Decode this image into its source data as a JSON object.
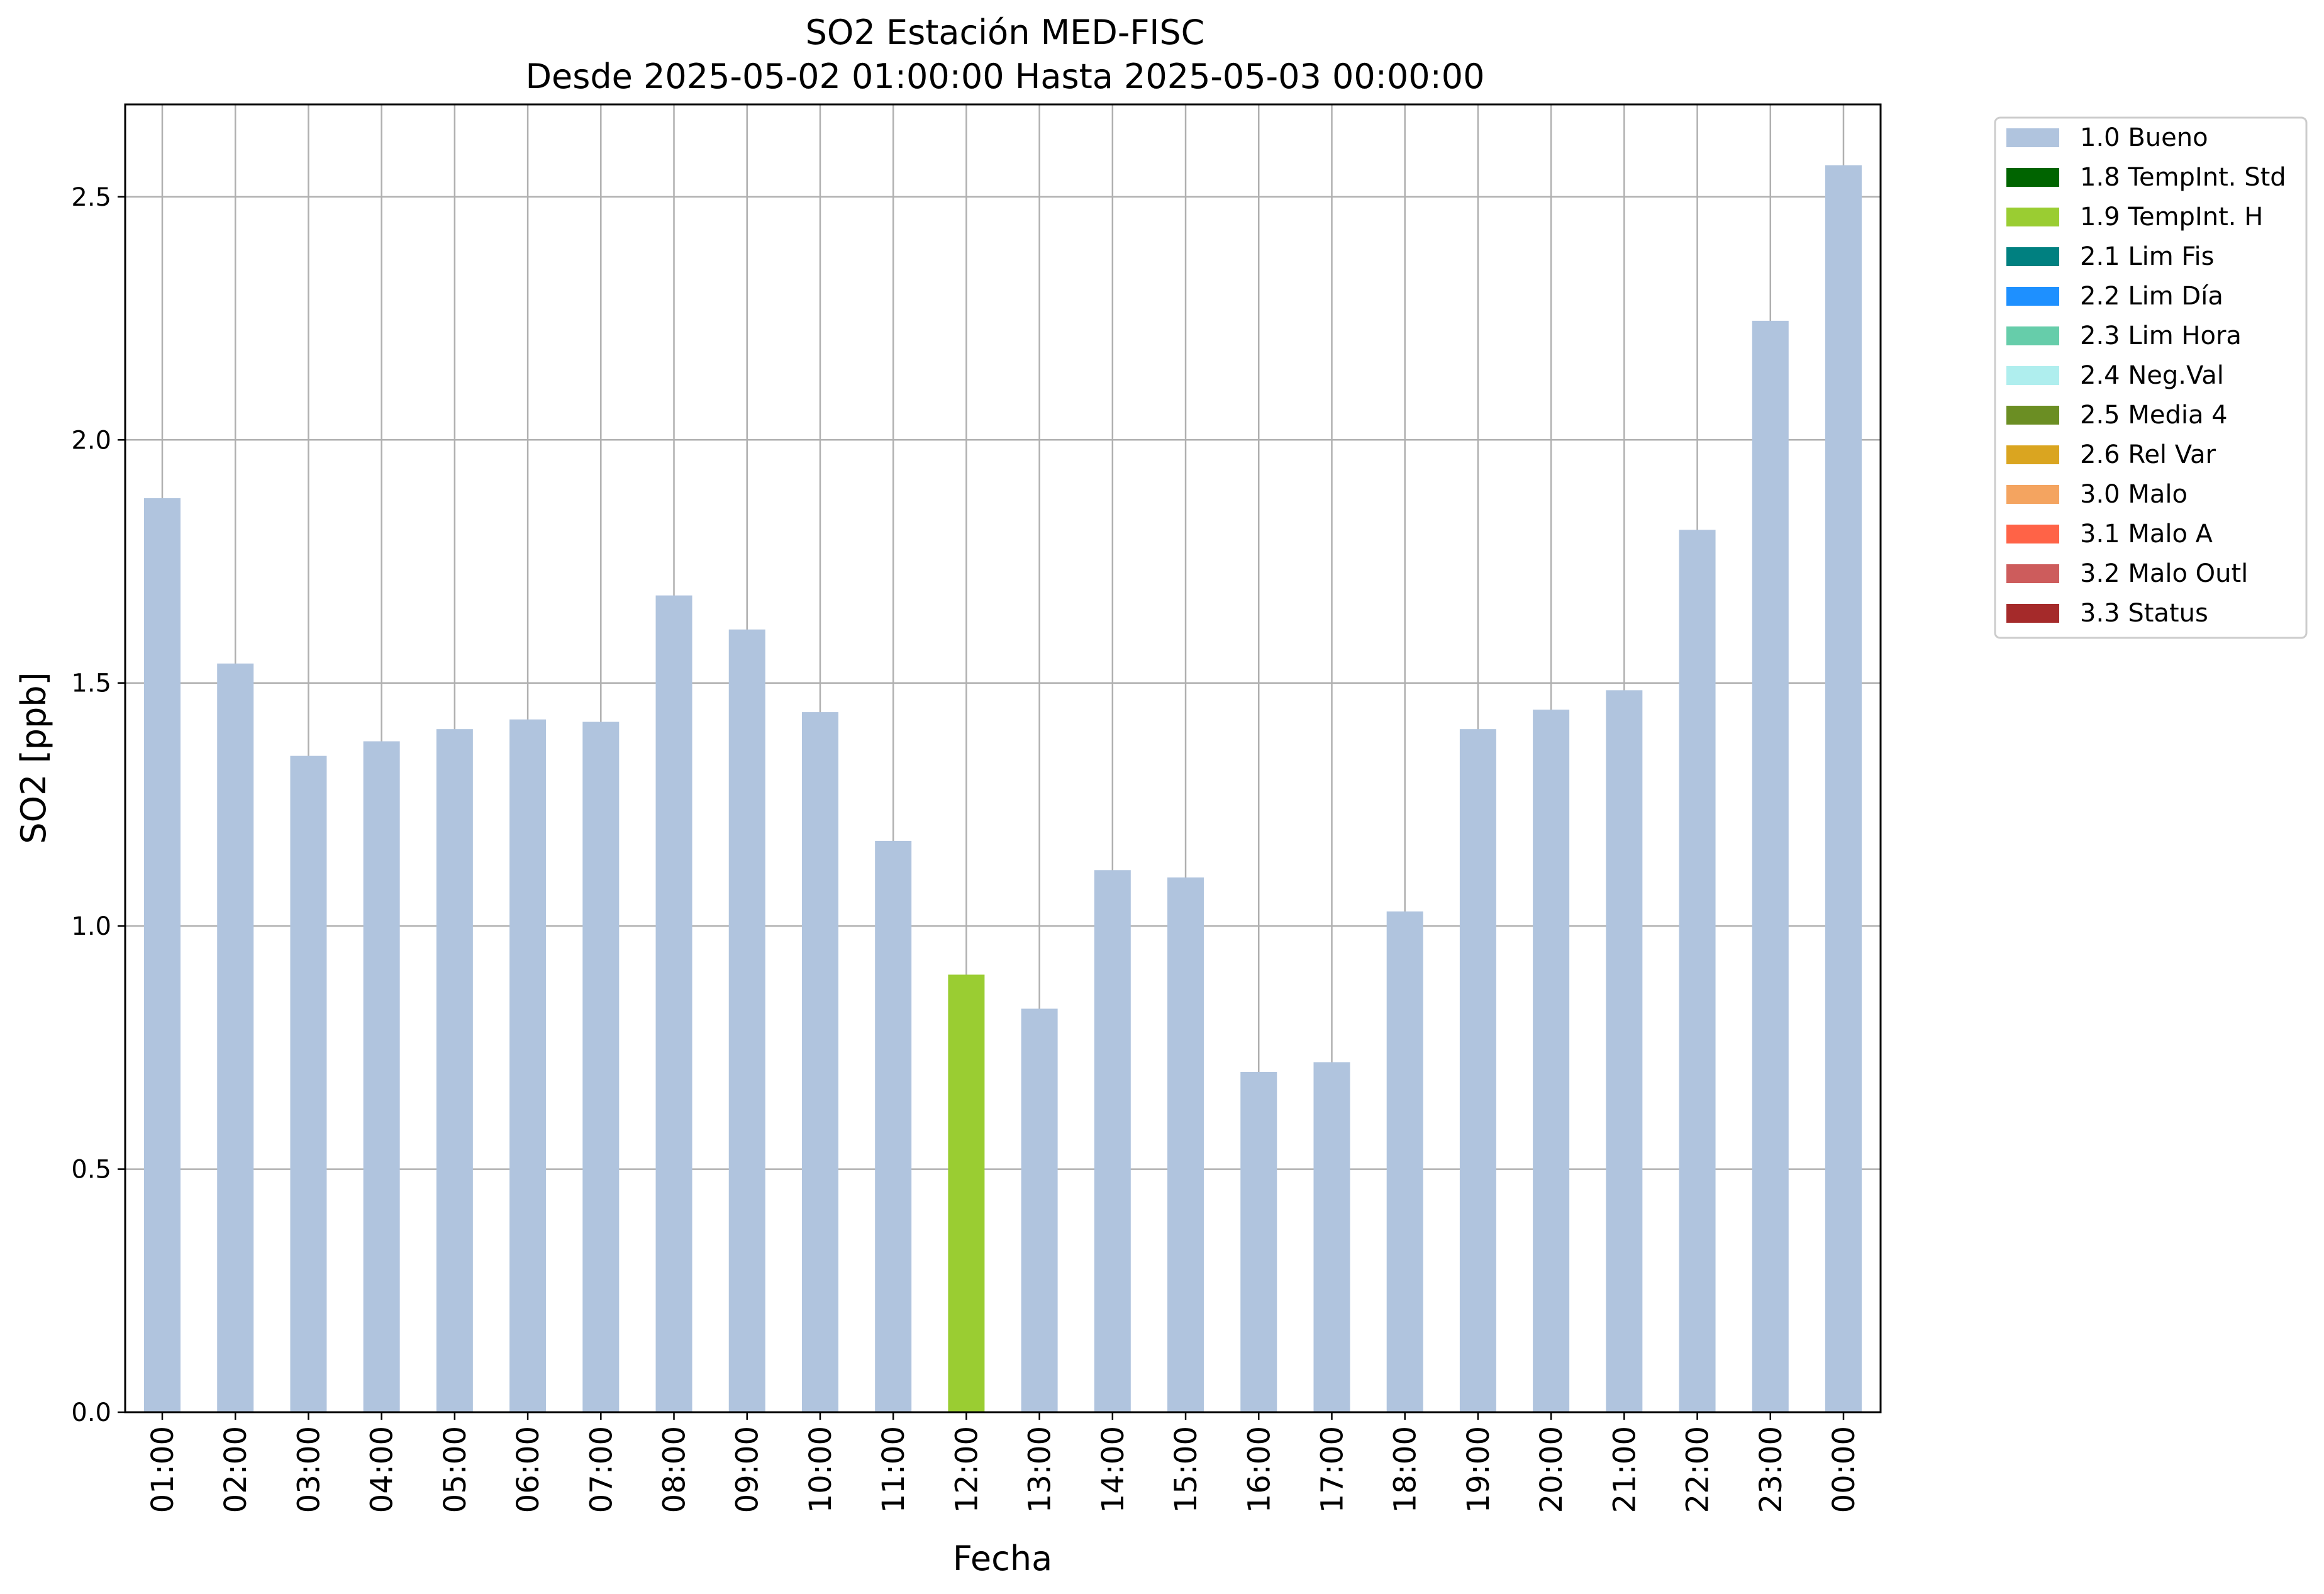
{
  "chart_data": {
    "type": "bar",
    "title": "SO2 Estación MED-FISC",
    "subtitle": "Desde 2025-05-02 01:00:00 Hasta 2025-05-03 00:00:00",
    "xlabel": "Fecha",
    "ylabel": "SO2 [ppb]",
    "ylim": [
      0,
      2.69
    ],
    "yticks": [
      0.0,
      0.5,
      1.0,
      1.5,
      2.0,
      2.5
    ],
    "ytick_labels": [
      "0.0",
      "0.5",
      "1.0",
      "1.5",
      "2.0",
      "2.5"
    ],
    "grid": true,
    "legend_position": "outside-top-right",
    "categories": [
      "01:00",
      "02:00",
      "03:00",
      "04:00",
      "05:00",
      "06:00",
      "07:00",
      "08:00",
      "09:00",
      "10:00",
      "11:00",
      "12:00",
      "13:00",
      "14:00",
      "15:00",
      "16:00",
      "17:00",
      "18:00",
      "19:00",
      "20:00",
      "21:00",
      "22:00",
      "23:00",
      "00:00"
    ],
    "values": [
      1.88,
      1.54,
      1.35,
      1.38,
      1.405,
      1.425,
      1.42,
      1.68,
      1.61,
      1.44,
      1.175,
      0.9,
      0.83,
      1.115,
      1.1,
      0.7,
      0.72,
      1.03,
      1.405,
      1.445,
      1.485,
      1.815,
      2.245,
      2.565
    ],
    "bar_flag": [
      "1.0",
      "1.0",
      "1.0",
      "1.0",
      "1.0",
      "1.0",
      "1.0",
      "1.0",
      "1.0",
      "1.0",
      "1.0",
      "1.9",
      "1.0",
      "1.0",
      "1.0",
      "1.0",
      "1.0",
      "1.0",
      "1.0",
      "1.0",
      "1.0",
      "1.0",
      "1.0",
      "1.0"
    ],
    "legend": [
      {
        "code": "1.0",
        "label": "1.0 Bueno",
        "color": "#b0c4de"
      },
      {
        "code": "1.8",
        "label": "1.8 TempInt. Std",
        "color": "#006400"
      },
      {
        "code": "1.9",
        "label": "1.9 TempInt. H",
        "color": "#9acd32"
      },
      {
        "code": "2.1",
        "label": "2.1 Lim Fis",
        "color": "#008080"
      },
      {
        "code": "2.2",
        "label": "2.2 Lim Día",
        "color": "#1e90ff"
      },
      {
        "code": "2.3",
        "label": "2.3 Lim Hora",
        "color": "#66cdaa"
      },
      {
        "code": "2.4",
        "label": "2.4 Neg.Val",
        "color": "#afeeee"
      },
      {
        "code": "2.5",
        "label": "2.5 Media 4",
        "color": "#6b8e23"
      },
      {
        "code": "2.6",
        "label": "2.6 Rel Var",
        "color": "#daa520"
      },
      {
        "code": "3.0",
        "label": "3.0 Malo",
        "color": "#f4a460"
      },
      {
        "code": "3.1",
        "label": "3.1 Malo A",
        "color": "#ff6347"
      },
      {
        "code": "3.2",
        "label": "3.2 Malo Outl",
        "color": "#cd5c5c"
      },
      {
        "code": "3.3",
        "label": "3.3 Status",
        "color": "#a52a2a"
      }
    ]
  }
}
